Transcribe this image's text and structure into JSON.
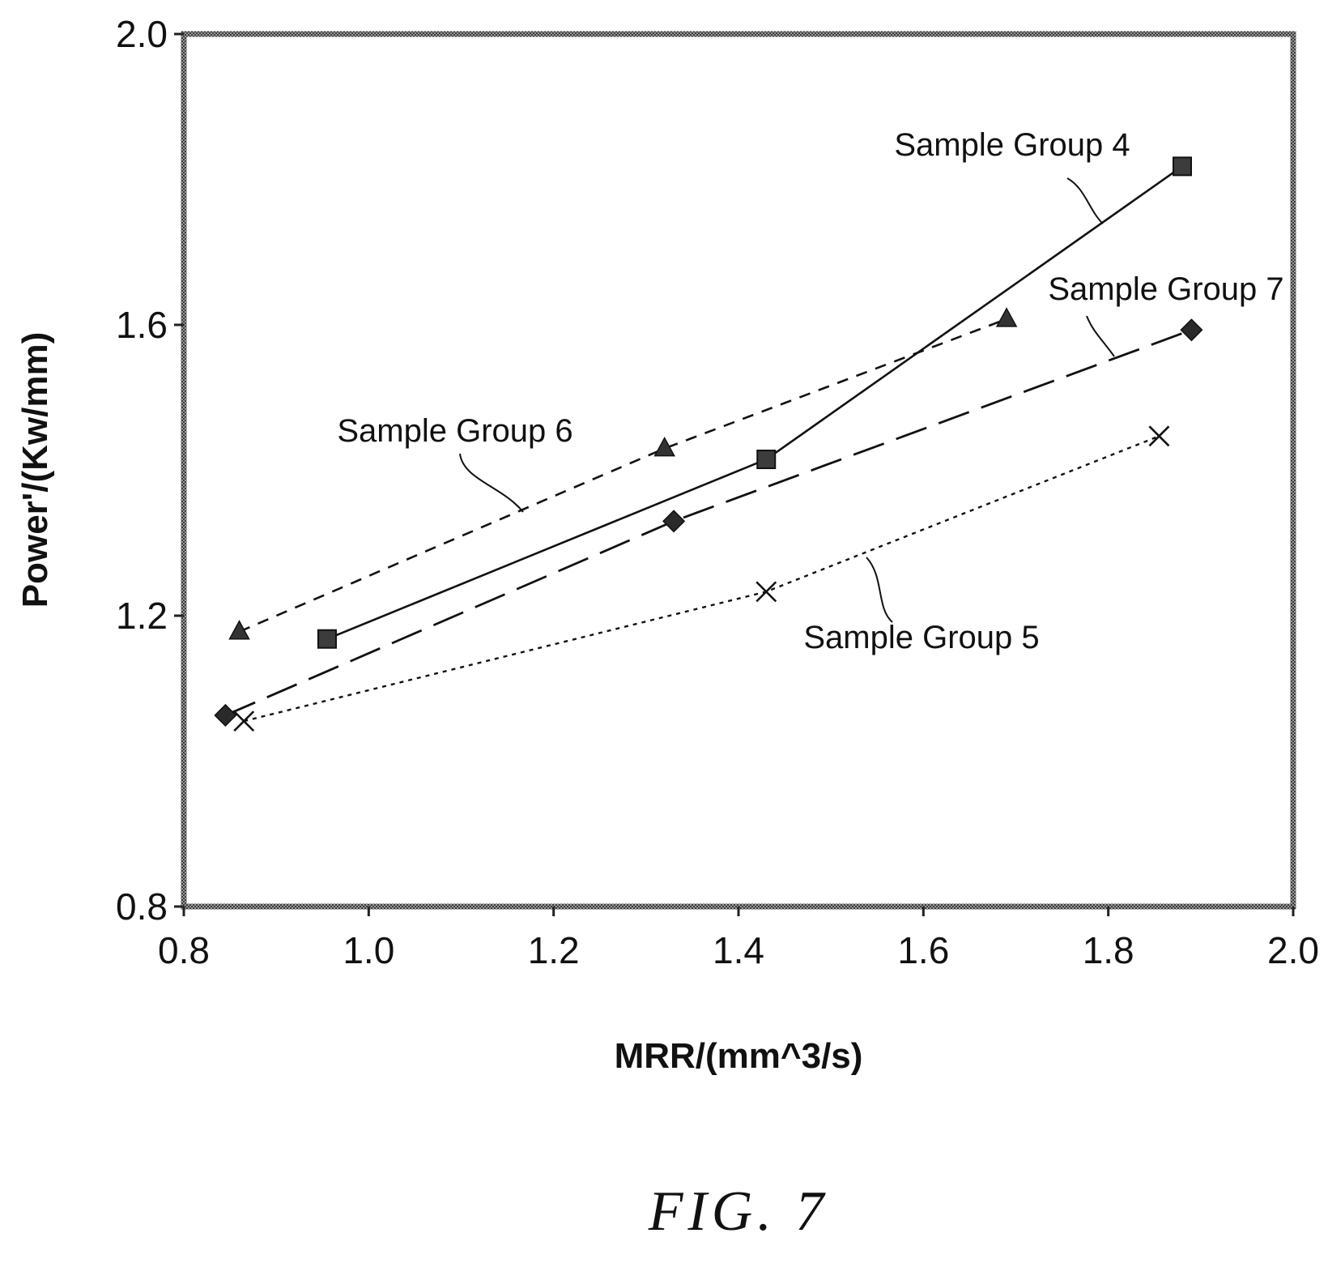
{
  "caption": "FIG. 7",
  "chart_data": {
    "type": "line",
    "title": "",
    "xlabel": "MRR/(mm^3/s)",
    "ylabel": "Power'/(Kw/mm)",
    "xlim": [
      0.8,
      2.0
    ],
    "ylim": [
      0.8,
      2.0
    ],
    "xticks": [
      "0.8",
      "1.0",
      "1.2",
      "1.4",
      "1.6",
      "1.8",
      "2.0"
    ],
    "yticks": [
      "0.8",
      "1.2",
      "1.6",
      "2.0"
    ],
    "grid": false,
    "legend": "callout labels on plot",
    "series": [
      {
        "name": "Sample Group 4",
        "marker": "square",
        "line_style": "solid",
        "x": [
          0.955,
          1.43,
          1.88
        ],
        "y": [
          1.168,
          1.415,
          1.818
        ]
      },
      {
        "name": "Sample Group 5",
        "marker": "x",
        "line_style": "dotted",
        "x": [
          0.865,
          1.43,
          1.855
        ],
        "y": [
          1.055,
          1.233,
          1.447
        ]
      },
      {
        "name": "Sample Group 6",
        "marker": "triangle",
        "line_style": "short-dash",
        "x": [
          0.86,
          1.32,
          1.69
        ],
        "y": [
          1.178,
          1.43,
          1.608
        ]
      },
      {
        "name": "Sample Group 7",
        "marker": "diamond",
        "line_style": "long-dash",
        "x": [
          0.845,
          1.33,
          1.89
        ],
        "y": [
          1.063,
          1.33,
          1.593
        ]
      }
    ]
  }
}
